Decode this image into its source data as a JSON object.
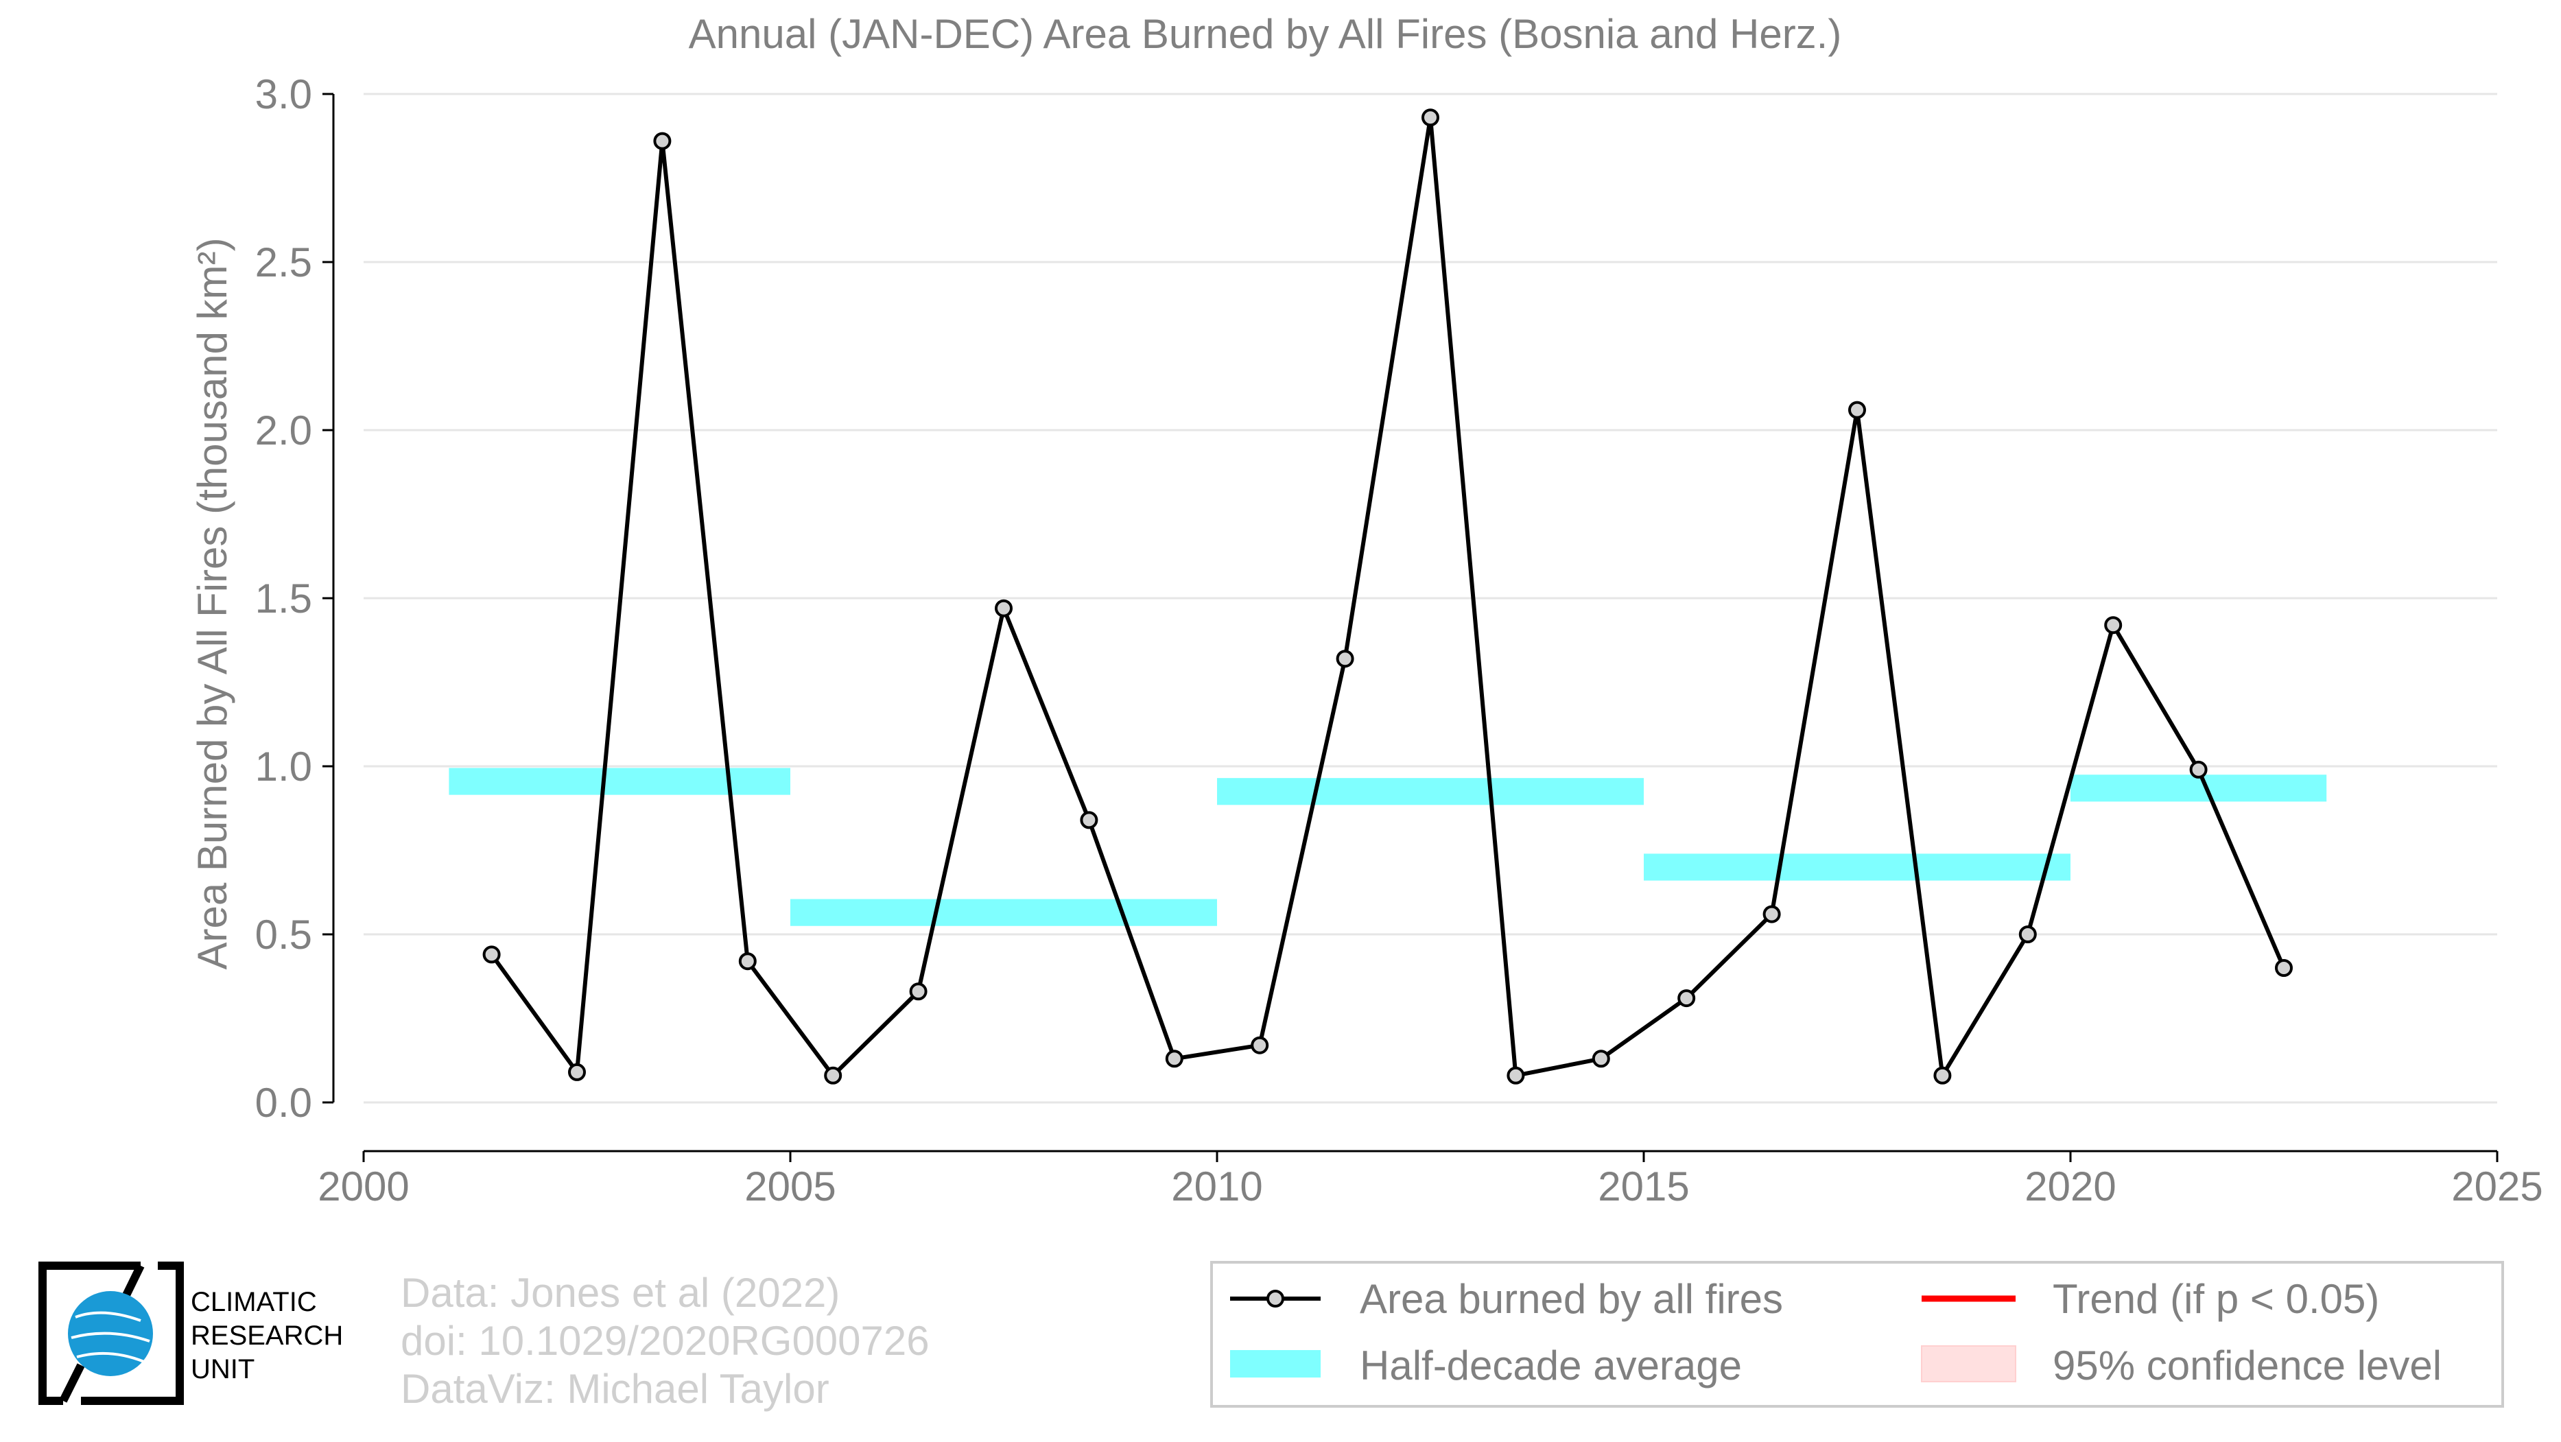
{
  "chart_data": {
    "type": "line",
    "title": "Annual (JAN-DEC) Area Burned by All Fires (Bosnia and Herz.)",
    "xlabel": "",
    "ylabel": "Area Burned by All Fires (thousand km²)",
    "xlim": [
      2000,
      2025
    ],
    "ylim": [
      -0.15,
      3.05
    ],
    "x_ticks": [
      "2000",
      "2005",
      "2010",
      "2015",
      "2020",
      "2025"
    ],
    "y_ticks": [
      "0.0",
      "0.5",
      "1.0",
      "1.5",
      "2.0",
      "2.5",
      "3.0"
    ],
    "grid": "horizontal",
    "series": [
      {
        "name": "Area burned by all fires",
        "color": "#000000",
        "marker_fill": "#d3d3d3",
        "x": [
          2001.5,
          2002.5,
          2003.5,
          2004.5,
          2005.5,
          2006.5,
          2007.5,
          2008.5,
          2009.5,
          2010.5,
          2011.5,
          2012.5,
          2013.5,
          2014.5,
          2015.5,
          2016.5,
          2017.5,
          2018.5,
          2019.5,
          2020.5,
          2021.5,
          2022.5
        ],
        "values": [
          0.44,
          0.09,
          2.86,
          0.42,
          0.08,
          0.33,
          1.47,
          0.84,
          0.13,
          0.17,
          1.32,
          2.93,
          0.08,
          0.13,
          0.31,
          0.56,
          2.06,
          0.08,
          0.5,
          1.42,
          0.99,
          0.4
        ]
      }
    ],
    "half_decade_average": {
      "name": "Half-decade average",
      "color": "#7fffff",
      "segments": [
        {
          "x_start": 2001,
          "x_end": 2005,
          "value": 0.955
        },
        {
          "x_start": 2005,
          "x_end": 2010,
          "value": 0.565
        },
        {
          "x_start": 2010,
          "x_end": 2015,
          "value": 0.925
        },
        {
          "x_start": 2015,
          "x_end": 2020,
          "value": 0.7
        },
        {
          "x_start": 2020,
          "x_end": 2023,
          "value": 0.935
        }
      ]
    },
    "legend": {
      "placement": "bottom-right",
      "items": [
        {
          "label": "Area burned by all fires",
          "kind": "line-marker",
          "color": "#000000"
        },
        {
          "label": "Trend (if p < 0.05)",
          "kind": "line",
          "color": "#ff0000"
        },
        {
          "label": "Half-decade average",
          "kind": "band",
          "color": "#7fffff"
        },
        {
          "label": "95% confidence level",
          "kind": "band",
          "color": "#ffe0e0"
        }
      ]
    }
  },
  "credits": {
    "line1": "Data: Jones et al (2022)",
    "line2": "doi: 10.1029/2020RG000726",
    "line3": "DataViz: Michael Taylor"
  },
  "logo": {
    "line1": "CLIMATIC",
    "line2": "RESEARCH",
    "line3": "UNIT",
    "globe_color": "#1a9ad6"
  },
  "colors": {
    "axis_text": "#808080",
    "grid": "#e6e6e6",
    "axis_line": "#000000"
  }
}
